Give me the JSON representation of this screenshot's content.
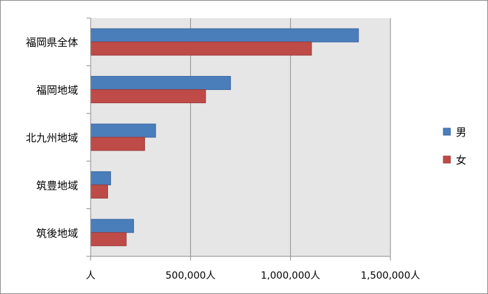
{
  "chart_data": {
    "type": "bar",
    "orientation": "horizontal",
    "categories": [
      "福岡県全体",
      "福岡地域",
      "北九州地域",
      "筑豊地域",
      "筑後地域"
    ],
    "series": [
      {
        "name": "男",
        "color": "#4a7ebb",
        "values": [
          1340000,
          700000,
          325000,
          100000,
          215000
        ]
      },
      {
        "name": "女",
        "color": "#be4b48",
        "values": [
          1105000,
          575000,
          270000,
          85000,
          178000
        ]
      }
    ],
    "xlim": [
      0,
      1500000
    ],
    "x_ticks": [
      0,
      500000,
      1000000,
      1500000
    ],
    "x_tick_labels": [
      "人",
      "500,000人",
      "1,000,000人",
      "1,500,000人"
    ],
    "grid": true,
    "legend_position": "right",
    "plot_background": "#e6e6e6"
  }
}
